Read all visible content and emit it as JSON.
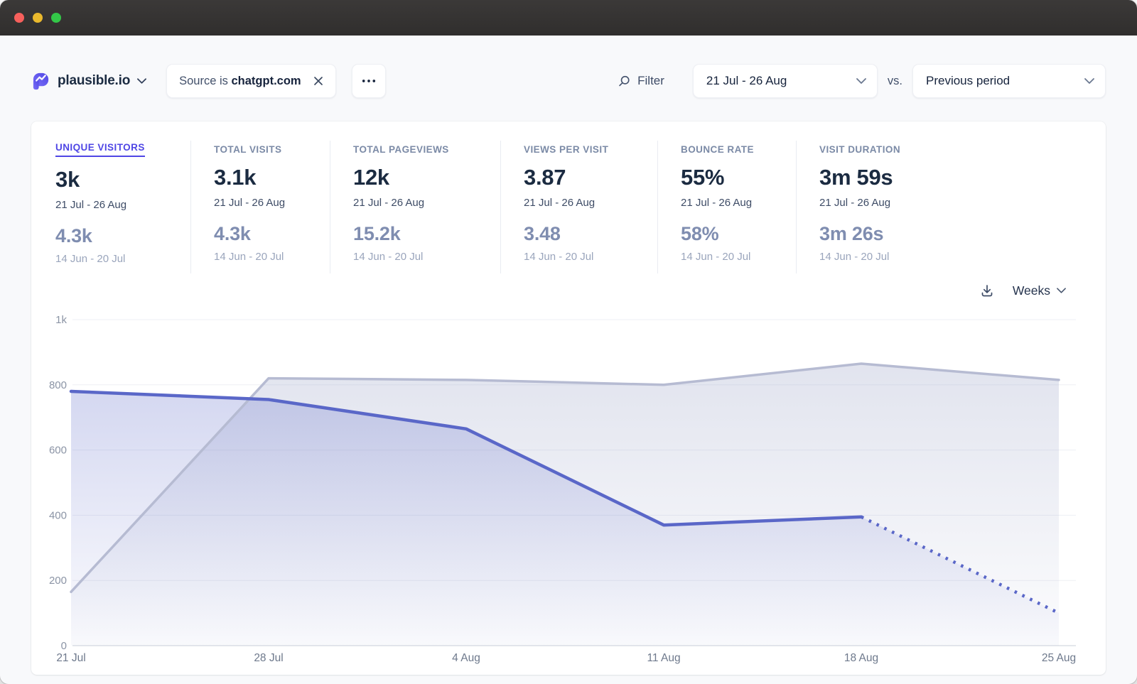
{
  "header": {
    "site_name": "plausible.io",
    "filter_chip": {
      "prefix": "Source is",
      "value": "chatgpt.com"
    },
    "filter_label": "Filter",
    "date_range": "21 Jul - 26 Aug",
    "vs_label": "vs.",
    "comparison": "Previous period"
  },
  "metrics": [
    {
      "key": "unique-visitors",
      "label": "UNIQUE VISITORS",
      "value": "3k",
      "period": "21 Jul - 26 Aug",
      "prev_value": "4.3k",
      "prev_period": "14 Jun - 20 Jul",
      "active": true
    },
    {
      "key": "total-visits",
      "label": "TOTAL VISITS",
      "value": "3.1k",
      "period": "21 Jul - 26 Aug",
      "prev_value": "4.3k",
      "prev_period": "14 Jun - 20 Jul",
      "active": false
    },
    {
      "key": "total-pageviews",
      "label": "TOTAL PAGEVIEWS",
      "value": "12k",
      "period": "21 Jul - 26 Aug",
      "prev_value": "15.2k",
      "prev_period": "14 Jun - 20 Jul",
      "active": false
    },
    {
      "key": "views-per-visit",
      "label": "VIEWS PER VISIT",
      "value": "3.87",
      "period": "21 Jul - 26 Aug",
      "prev_value": "3.48",
      "prev_period": "14 Jun - 20 Jul",
      "active": false
    },
    {
      "key": "bounce-rate",
      "label": "BOUNCE RATE",
      "value": "55%",
      "period": "21 Jul - 26 Aug",
      "prev_value": "58%",
      "prev_period": "14 Jun - 20 Jul",
      "active": false
    },
    {
      "key": "visit-duration",
      "label": "VISIT DURATION",
      "value": "3m 59s",
      "period": "21 Jul - 26 Aug",
      "prev_value": "3m 26s",
      "prev_period": "14 Jun - 20 Jul",
      "active": false
    }
  ],
  "toolbar": {
    "interval": "Weeks"
  },
  "chart_data": {
    "type": "area",
    "title": "Unique visitors by week",
    "x": [
      "21 Jul",
      "28 Jul",
      "4 Aug",
      "11 Aug",
      "18 Aug",
      "25 Aug"
    ],
    "series": [
      {
        "name": "21 Jul - 26 Aug",
        "values": [
          780,
          755,
          665,
          370,
          395,
          100
        ],
        "color": "#5a67c8",
        "dashed_from_index": 4
      },
      {
        "name": "14 Jun - 20 Jul",
        "values": [
          165,
          820,
          815,
          800,
          865,
          815
        ],
        "color": "#b6bbd2"
      }
    ],
    "ylim": [
      0,
      1000
    ],
    "yticks": [
      0,
      200,
      400,
      600,
      800,
      1000
    ],
    "ytick_labels": [
      "0",
      "200",
      "400",
      "600",
      "800",
      "1k"
    ],
    "grid": true,
    "legend": false
  },
  "colors": {
    "accent": "#4f46e5",
    "current_line": "#5a67c8",
    "previous_line": "#b6bbd2",
    "value_primary": "#1b2b41",
    "value_secondary": "#7f8db0",
    "metric_label": "#7b8aa6",
    "page_background": "#f8f9fb",
    "titlebar": "#343230",
    "traffic_red": "#f7605c",
    "traffic_yellow": "#eab92d",
    "traffic_green": "#33c748"
  }
}
